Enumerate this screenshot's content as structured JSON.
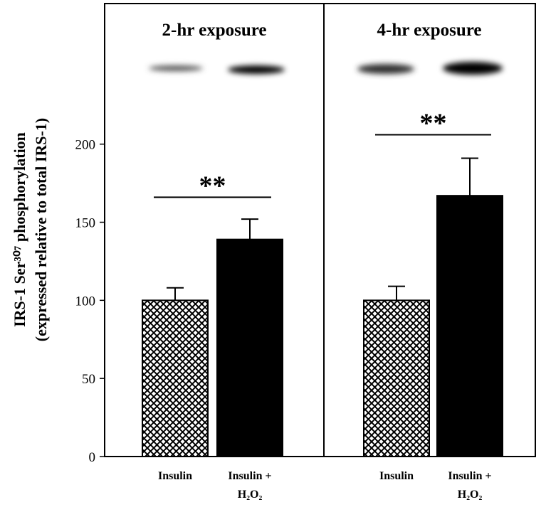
{
  "chart_data": [
    {
      "type": "bar",
      "title": "2-hr exposure",
      "y_label": [
        "IRS-1 Ser³⁰⁷ phosphorylation",
        "(expressed relative to total IRS-1)"
      ],
      "categories": [
        "Insulin",
        "Insulin + H₂O₂"
      ],
      "values": [
        100,
        139
      ],
      "errors": [
        8,
        13
      ],
      "fills": [
        "crosshatch",
        "#000000"
      ],
      "ylim": [
        0,
        290
      ],
      "yticks": [
        0,
        50,
        100,
        150,
        200
      ],
      "significance": {
        "text": "**",
        "y": 166
      }
    },
    {
      "type": "bar",
      "title": "4-hr exposure",
      "categories": [
        "Insulin",
        "Insulin + H₂O₂"
      ],
      "values": [
        100,
        167
      ],
      "errors": [
        9,
        24
      ],
      "fills": [
        "crosshatch",
        "#000000"
      ],
      "ylim": [
        0,
        290
      ],
      "significance": {
        "text": "**",
        "y": 206
      }
    }
  ]
}
